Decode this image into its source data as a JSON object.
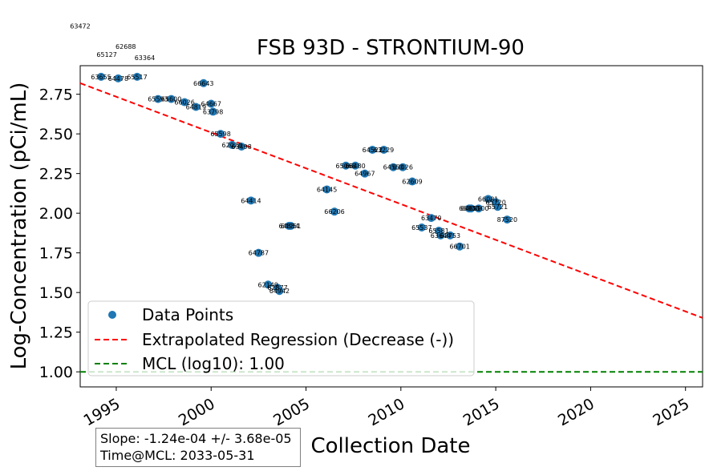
{
  "chart_data": {
    "type": "scatter",
    "title": "FSB 93D - STRONTIUM-90",
    "xlabel": "Collection Date",
    "ylabel": "Log-Concentration (pCi/mL)",
    "xlim": [
      1993.1,
      2025.9
    ],
    "ylim": [
      0.905,
      2.93
    ],
    "x_ticks": [
      1995,
      2000,
      2005,
      2010,
      2015,
      2020,
      2025
    ],
    "y_ticks": [
      1.0,
      1.25,
      1.5,
      1.75,
      2.0,
      2.25,
      2.5,
      2.75
    ],
    "y_tick_labels": [
      "1.00",
      "1.25",
      "1.50",
      "1.75",
      "2.00",
      "2.25",
      "2.50",
      "2.75"
    ],
    "grid": false,
    "legend_position": "lower-left",
    "point_color": "#1f77b4",
    "regression_color": "#ff0000",
    "mcl_color": "#008000",
    "series": [
      {
        "name": "Data Points",
        "points": [
          {
            "x": 1994.2,
            "y": 2.86,
            "label": "63655"
          },
          {
            "x": 1995.1,
            "y": 2.85,
            "label": "64478"
          },
          {
            "x": 1996.1,
            "y": 2.86,
            "label": "65517"
          },
          {
            "x": 1997.2,
            "y": 2.72,
            "label": "65593"
          },
          {
            "x": 1997.9,
            "y": 2.72,
            "label": "65600"
          },
          {
            "x": 1998.6,
            "y": 2.7,
            "label": "66026"
          },
          {
            "x": 1999.2,
            "y": 2.67,
            "label": "64819"
          },
          {
            "x": 1999.6,
            "y": 2.82,
            "label": "66643"
          },
          {
            "x": 2000.0,
            "y": 2.69,
            "label": "64667"
          },
          {
            "x": 2000.1,
            "y": 2.64,
            "label": "63798"
          },
          {
            "x": 2000.5,
            "y": 2.5,
            "label": "65598"
          },
          {
            "x": 2001.1,
            "y": 2.43,
            "label": "62028"
          },
          {
            "x": 2001.6,
            "y": 2.42,
            "label": "63498"
          },
          {
            "x": 2002.1,
            "y": 2.08,
            "label": "64414"
          },
          {
            "x": 2002.5,
            "y": 1.75,
            "label": "64787"
          },
          {
            "x": 2003.0,
            "y": 1.55,
            "label": "62149"
          },
          {
            "x": 2003.5,
            "y": 1.53,
            "label": "62877"
          },
          {
            "x": 2003.6,
            "y": 1.51,
            "label": "64942"
          },
          {
            "x": 2004.1,
            "y": 1.92,
            "label": "64854"
          },
          {
            "x": 2004.2,
            "y": 1.92,
            "label": "64951"
          },
          {
            "x": 2006.1,
            "y": 2.15,
            "label": "64145"
          },
          {
            "x": 2006.5,
            "y": 2.01,
            "label": "66206"
          },
          {
            "x": 2007.1,
            "y": 2.3,
            "label": "65068"
          },
          {
            "x": 2007.6,
            "y": 2.3,
            "label": "66480"
          },
          {
            "x": 2008.1,
            "y": 2.25,
            "label": "64967"
          },
          {
            "x": 2008.5,
            "y": 2.4,
            "label": "64522"
          },
          {
            "x": 2009.1,
            "y": 2.4,
            "label": "63229"
          },
          {
            "x": 2009.6,
            "y": 2.29,
            "label": "64553"
          },
          {
            "x": 2010.1,
            "y": 2.29,
            "label": "63026"
          },
          {
            "x": 2010.6,
            "y": 2.2,
            "label": "62609"
          },
          {
            "x": 2011.1,
            "y": 1.91,
            "label": "65537"
          },
          {
            "x": 2011.6,
            "y": 1.97,
            "label": "63470"
          },
          {
            "x": 2012.0,
            "y": 1.89,
            "label": "65581"
          },
          {
            "x": 2012.1,
            "y": 1.86,
            "label": "63644"
          },
          {
            "x": 2012.6,
            "y": 1.86,
            "label": "62753"
          },
          {
            "x": 2013.1,
            "y": 1.79,
            "label": "66701"
          },
          {
            "x": 2013.6,
            "y": 2.03,
            "label": "66800"
          },
          {
            "x": 2013.7,
            "y": 2.03,
            "label": "64389"
          },
          {
            "x": 2014.1,
            "y": 2.03,
            "label": "65100"
          },
          {
            "x": 2014.6,
            "y": 2.09,
            "label": "66081"
          },
          {
            "x": 2015.0,
            "y": 2.07,
            "label": "65720"
          },
          {
            "x": 2015.1,
            "y": 2.04,
            "label": "65721"
          },
          {
            "x": 2015.6,
            "y": 1.96,
            "label": "87520"
          }
        ],
        "outside_labels": [
          {
            "x": 1993.1,
            "y": 3.18,
            "label": "63472"
          },
          {
            "x": 1994.5,
            "y": 3.0,
            "label": "65127"
          },
          {
            "x": 1995.5,
            "y": 3.05,
            "label": "62688"
          },
          {
            "x": 1996.5,
            "y": 2.98,
            "label": "63364"
          }
        ]
      },
      {
        "name": "Extrapolated Regression (Decrease (-))",
        "line": [
          [
            1993.1,
            2.82
          ],
          [
            2025.9,
            1.34
          ]
        ]
      },
      {
        "name": "MCL (log10): 1.00",
        "hline": 1.0
      }
    ],
    "stats": {
      "slope": "Slope: -1.24e-04 +/- 3.68e-05",
      "time_at_mcl": "Time@MCL: 2033-05-31"
    }
  }
}
